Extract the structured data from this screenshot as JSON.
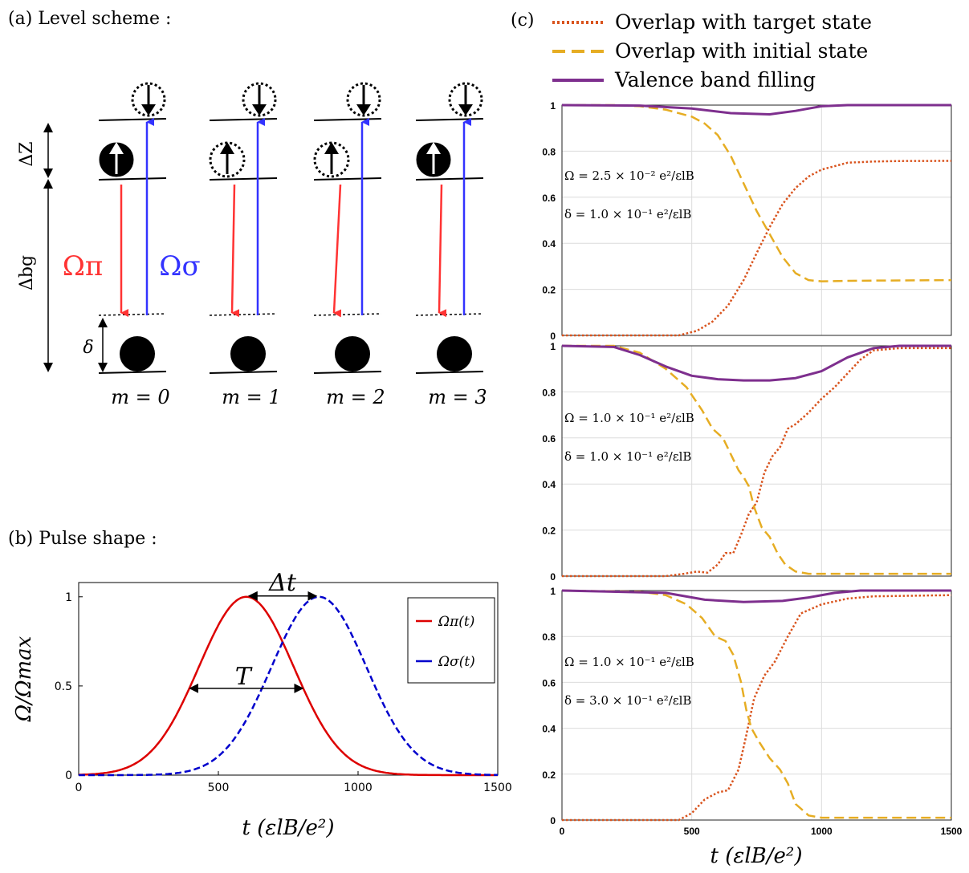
{
  "colors": {
    "pi": "#ff3333",
    "sigma": "#3333ff",
    "pulse_pi": "#dd0000",
    "pulse_sigma": "#0000cc",
    "target": "#d9541e",
    "initial": "#e6ad23",
    "valence": "#7e2f8e",
    "grid": "#dcdcdc"
  },
  "panel_a": {
    "label": "(a) Level scheme :",
    "delta_z": "ΔZ",
    "delta_bg": "Δbg",
    "delta": "δ",
    "omega_pi": "Ωπ",
    "omega_sigma": "Ωσ",
    "columns": [
      {
        "label": "m = 0",
        "upper_filled": true
      },
      {
        "label": "m = 1",
        "upper_filled": false
      },
      {
        "label": "m = 2",
        "upper_filled": false
      },
      {
        "label": "m = 3",
        "upper_filled": true
      }
    ]
  },
  "panel_b": {
    "label": "(b) Pulse shape :",
    "delta_t": "Δt",
    "pulse_width": "T",
    "chart_data": {
      "type": "line",
      "xlabel": "t (εlB/e²)",
      "ylabel": "Ω/Ωmax",
      "xlim": [
        0,
        1500
      ],
      "ylim": [
        0,
        1.08
      ],
      "xticks": [
        0,
        500,
        1000,
        1500
      ],
      "yticks": [
        0,
        0.5,
        1
      ],
      "legend_position": "top-right",
      "series": [
        {
          "name": "Ωπ(t)",
          "center": 600,
          "width_fwhm": 400,
          "style": "solid"
        },
        {
          "name": "Ωσ(t)",
          "center": 860,
          "width_fwhm": 400,
          "style": "dashed"
        }
      ]
    }
  },
  "panel_c": {
    "label": "(c)",
    "legend": [
      {
        "key": "target",
        "text": "Overlap with target state"
      },
      {
        "key": "initial",
        "text": "Overlap with initial state"
      },
      {
        "key": "valence",
        "text": "Valence band filling"
      }
    ],
    "xlabel": "t (εlB/e²)",
    "xticks": [
      0,
      500,
      1000,
      1500
    ],
    "yticks": [
      0,
      0.2,
      0.4,
      0.6,
      0.8,
      1
    ],
    "chart_data": [
      {
        "type": "line",
        "xlim": [
          0,
          1500
        ],
        "ylim": [
          0,
          1
        ],
        "annotation_omega": "Ω = 2.5 × 10⁻² e²/εlB",
        "annotation_delta": "δ = 1.0 × 10⁻¹ e²/εlB",
        "series": [
          {
            "name": "target",
            "x": [
              0,
              450,
              520,
              580,
              640,
              700,
              760,
              800,
              850,
              900,
              950,
              1000,
              1100,
              1200,
              1300,
              1500
            ],
            "y": [
              0,
              0,
              0.02,
              0.06,
              0.13,
              0.24,
              0.38,
              0.47,
              0.57,
              0.64,
              0.69,
              0.72,
              0.75,
              0.755,
              0.757,
              0.758
            ]
          },
          {
            "name": "initial",
            "x": [
              0,
              200,
              300,
              400,
              500,
              550,
              600,
              650,
              700,
              750,
              800,
              850,
              900,
              950,
              1000,
              1100,
              1200,
              1500
            ],
            "y": [
              1,
              1,
              0.995,
              0.98,
              0.95,
              0.92,
              0.87,
              0.78,
              0.66,
              0.54,
              0.44,
              0.34,
              0.27,
              0.24,
              0.235,
              0.237,
              0.238,
              0.24
            ]
          },
          {
            "name": "valence",
            "x": [
              0,
              300,
              500,
              650,
              800,
              900,
              1000,
              1100,
              1200,
              1500
            ],
            "y": [
              1,
              0.998,
              0.985,
              0.965,
              0.96,
              0.975,
              0.995,
              1,
              1,
              1
            ]
          }
        ]
      },
      {
        "type": "line",
        "xlim": [
          0,
          1500
        ],
        "ylim": [
          0,
          1
        ],
        "annotation_omega": "Ω = 1.0 × 10⁻¹ e²/εlB",
        "annotation_delta": "δ = 1.0 × 10⁻¹ e²/εlB",
        "series": [
          {
            "name": "target",
            "x": [
              0,
              400,
              470,
              520,
              560,
              600,
              630,
              660,
              690,
              720,
              750,
              780,
              810,
              840,
              870,
              900,
              950,
              1000,
              1050,
              1100,
              1150,
              1200,
              1300,
              1500
            ],
            "y": [
              0,
              0,
              0.01,
              0.02,
              0.015,
              0.05,
              0.1,
              0.1,
              0.18,
              0.27,
              0.32,
              0.45,
              0.52,
              0.56,
              0.64,
              0.66,
              0.71,
              0.77,
              0.82,
              0.88,
              0.94,
              0.98,
              0.99,
              0.99
            ]
          },
          {
            "name": "initial",
            "x": [
              0,
              200,
              300,
              400,
              480,
              540,
              580,
              620,
              650,
              680,
              700,
              720,
              740,
              770,
              800,
              830,
              860,
              900,
              950,
              1000,
              1100,
              1500
            ],
            "y": [
              1,
              1,
              0.97,
              0.9,
              0.82,
              0.72,
              0.64,
              0.6,
              0.53,
              0.46,
              0.43,
              0.39,
              0.3,
              0.21,
              0.17,
              0.1,
              0.05,
              0.02,
              0.01,
              0.01,
              0.01,
              0.01
            ]
          },
          {
            "name": "valence",
            "x": [
              0,
              200,
              300,
              400,
              500,
              600,
              700,
              800,
              900,
              1000,
              1100,
              1200,
              1300,
              1500
            ],
            "y": [
              1,
              0.995,
              0.96,
              0.91,
              0.87,
              0.855,
              0.85,
              0.85,
              0.86,
              0.89,
              0.95,
              0.99,
              1,
              1
            ]
          }
        ]
      },
      {
        "type": "line",
        "xlim": [
          0,
          1500
        ],
        "ylim": [
          0,
          1
        ],
        "annotation_omega": "Ω = 1.0 × 10⁻¹ e²/εlB",
        "annotation_delta": "δ = 3.0 × 10⁻¹ e²/εlB",
        "series": [
          {
            "name": "target",
            "x": [
              0,
              450,
              500,
              550,
              600,
              640,
              680,
              710,
              740,
              780,
              820,
              870,
              920,
              1000,
              1100,
              1200,
              1500
            ],
            "y": [
              0,
              0,
              0.03,
              0.09,
              0.12,
              0.13,
              0.22,
              0.37,
              0.53,
              0.63,
              0.69,
              0.8,
              0.9,
              0.94,
              0.965,
              0.975,
              0.98
            ]
          },
          {
            "name": "initial",
            "x": [
              0,
              300,
              400,
              480,
              540,
              590,
              630,
              660,
              690,
              710,
              730,
              760,
              800,
              840,
              870,
              900,
              950,
              1000,
              1500
            ],
            "y": [
              1,
              0.995,
              0.98,
              0.94,
              0.88,
              0.8,
              0.78,
              0.72,
              0.6,
              0.48,
              0.4,
              0.34,
              0.27,
              0.22,
              0.16,
              0.07,
              0.02,
              0.01,
              0.01
            ]
          },
          {
            "name": "valence",
            "x": [
              0,
              400,
              550,
              700,
              850,
              950,
              1050,
              1150,
              1300,
              1500
            ],
            "y": [
              1,
              0.99,
              0.96,
              0.95,
              0.955,
              0.97,
              0.99,
              1,
              1,
              1
            ]
          }
        ]
      }
    ]
  }
}
